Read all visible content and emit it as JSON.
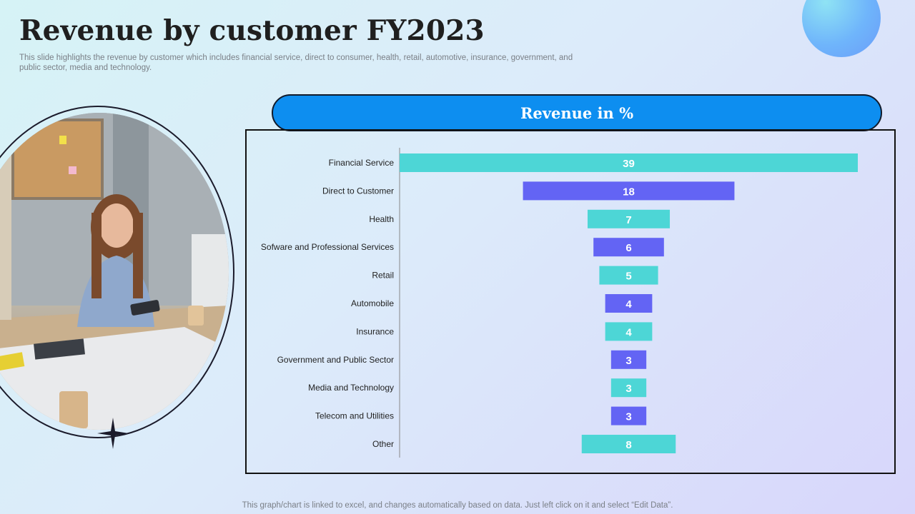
{
  "header": {
    "title": "Revenue by customer FY2023",
    "subtitle": "This slide highlights the revenue by customer which includes financial service, direct to consumer, health, retail, automotive, insurance, government, and public sector, media and technology."
  },
  "footer": {
    "note": "This graph/chart is linked to excel, and changes automatically based on data. Just left click on it and select “Edit Data”."
  },
  "colors": {
    "banner": "#0d8ef0",
    "teal": "#4dd6d6",
    "indigo": "#6364f4"
  },
  "chart_data": {
    "type": "bar",
    "orientation": "horizontal",
    "layout": "funnel-centered",
    "title": "Revenue in %",
    "categories": [
      "Financial Service",
      "Direct to Customer",
      "Health",
      "Sofware and Professional Services",
      "Retail",
      "Automobile",
      "Insurance",
      "Government and Public Sector",
      "Media and Technology",
      "Telecom and Utilities",
      "Other"
    ],
    "values": [
      39,
      18,
      7,
      6,
      5,
      4,
      4,
      3,
      3,
      3,
      8
    ],
    "bar_colors": [
      "#4dd6d6",
      "#6364f4",
      "#4dd6d6",
      "#6364f4",
      "#4dd6d6",
      "#6364f4",
      "#4dd6d6",
      "#6364f4",
      "#4dd6d6",
      "#6364f4",
      "#4dd6d6"
    ],
    "data_labels": true,
    "legend": false,
    "grid": false
  }
}
